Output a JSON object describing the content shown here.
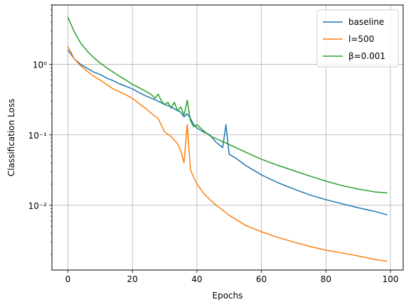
{
  "chart_data": {
    "type": "line",
    "title": "",
    "xlabel": "Epochs",
    "ylabel": "Classification Loss",
    "xlim": [
      -4.95,
      103.95
    ],
    "ylim": [
      0.0012,
      7
    ],
    "yscale": "log",
    "grid": true,
    "legend_position": "top-right",
    "xticks": [
      0,
      20,
      40,
      60,
      80,
      100
    ],
    "xtick_labels": [
      "0",
      "20",
      "40",
      "60",
      "80",
      "100"
    ],
    "yticks": [
      0.01,
      0.1,
      1
    ],
    "ytick_labels": [
      "10⁻²",
      "10⁻¹",
      "10⁰"
    ],
    "series": [
      {
        "name": "baseline",
        "color": "#1f77b4",
        "x": [
          0,
          2,
          4,
          6,
          8,
          10,
          12,
          14,
          16,
          18,
          20,
          22,
          24,
          26,
          28,
          30,
          32,
          34,
          35,
          36,
          37,
          38,
          39,
          40,
          42,
          44,
          46,
          48,
          49,
          50,
          52,
          55,
          60,
          65,
          70,
          75,
          80,
          85,
          90,
          95,
          99
        ],
        "y": [
          1.6,
          1.2,
          1.0,
          0.88,
          0.78,
          0.72,
          0.64,
          0.59,
          0.53,
          0.49,
          0.45,
          0.4,
          0.36,
          0.33,
          0.3,
          0.27,
          0.25,
          0.22,
          0.21,
          0.18,
          0.2,
          0.17,
          0.14,
          0.125,
          0.11,
          0.1,
          0.078,
          0.066,
          0.14,
          0.053,
          0.047,
          0.037,
          0.027,
          0.021,
          0.017,
          0.014,
          0.012,
          0.0105,
          0.0092,
          0.0082,
          0.0073
        ]
      },
      {
        "name": "l=500",
        "color": "#ff7f0e",
        "x": [
          0,
          2,
          4,
          6,
          8,
          10,
          12,
          14,
          16,
          18,
          20,
          22,
          24,
          26,
          28,
          30,
          32,
          34,
          35,
          36,
          37,
          38,
          39,
          40,
          42,
          44,
          46,
          48,
          50,
          55,
          60,
          65,
          70,
          75,
          80,
          85,
          90,
          95,
          99
        ],
        "y": [
          1.8,
          1.2,
          0.95,
          0.8,
          0.68,
          0.6,
          0.52,
          0.45,
          0.41,
          0.37,
          0.33,
          0.28,
          0.24,
          0.2,
          0.17,
          0.11,
          0.095,
          0.075,
          0.06,
          0.04,
          0.14,
          0.032,
          0.025,
          0.02,
          0.015,
          0.012,
          0.01,
          0.0085,
          0.0072,
          0.0052,
          0.0042,
          0.0035,
          0.003,
          0.0026,
          0.0023,
          0.0021,
          0.0019,
          0.0017,
          0.0016
        ]
      },
      {
        "name": "β=0.001",
        "color": "#2ca02c",
        "x": [
          0,
          2,
          4,
          6,
          8,
          10,
          12,
          14,
          16,
          18,
          20,
          22,
          24,
          26,
          27,
          28,
          29,
          30,
          31,
          32,
          33,
          34,
          35,
          36,
          37,
          38,
          39,
          40,
          42,
          44,
          46,
          48,
          50,
          55,
          60,
          65,
          70,
          75,
          80,
          85,
          90,
          95,
          99
        ],
        "y": [
          4.7,
          2.9,
          2.0,
          1.55,
          1.25,
          1.05,
          0.9,
          0.78,
          0.68,
          0.6,
          0.52,
          0.47,
          0.42,
          0.37,
          0.33,
          0.38,
          0.3,
          0.27,
          0.29,
          0.24,
          0.29,
          0.22,
          0.25,
          0.19,
          0.31,
          0.16,
          0.13,
          0.14,
          0.115,
          0.097,
          0.088,
          0.08,
          0.073,
          0.057,
          0.045,
          0.037,
          0.031,
          0.026,
          0.022,
          0.019,
          0.017,
          0.0155,
          0.015
        ]
      }
    ]
  }
}
